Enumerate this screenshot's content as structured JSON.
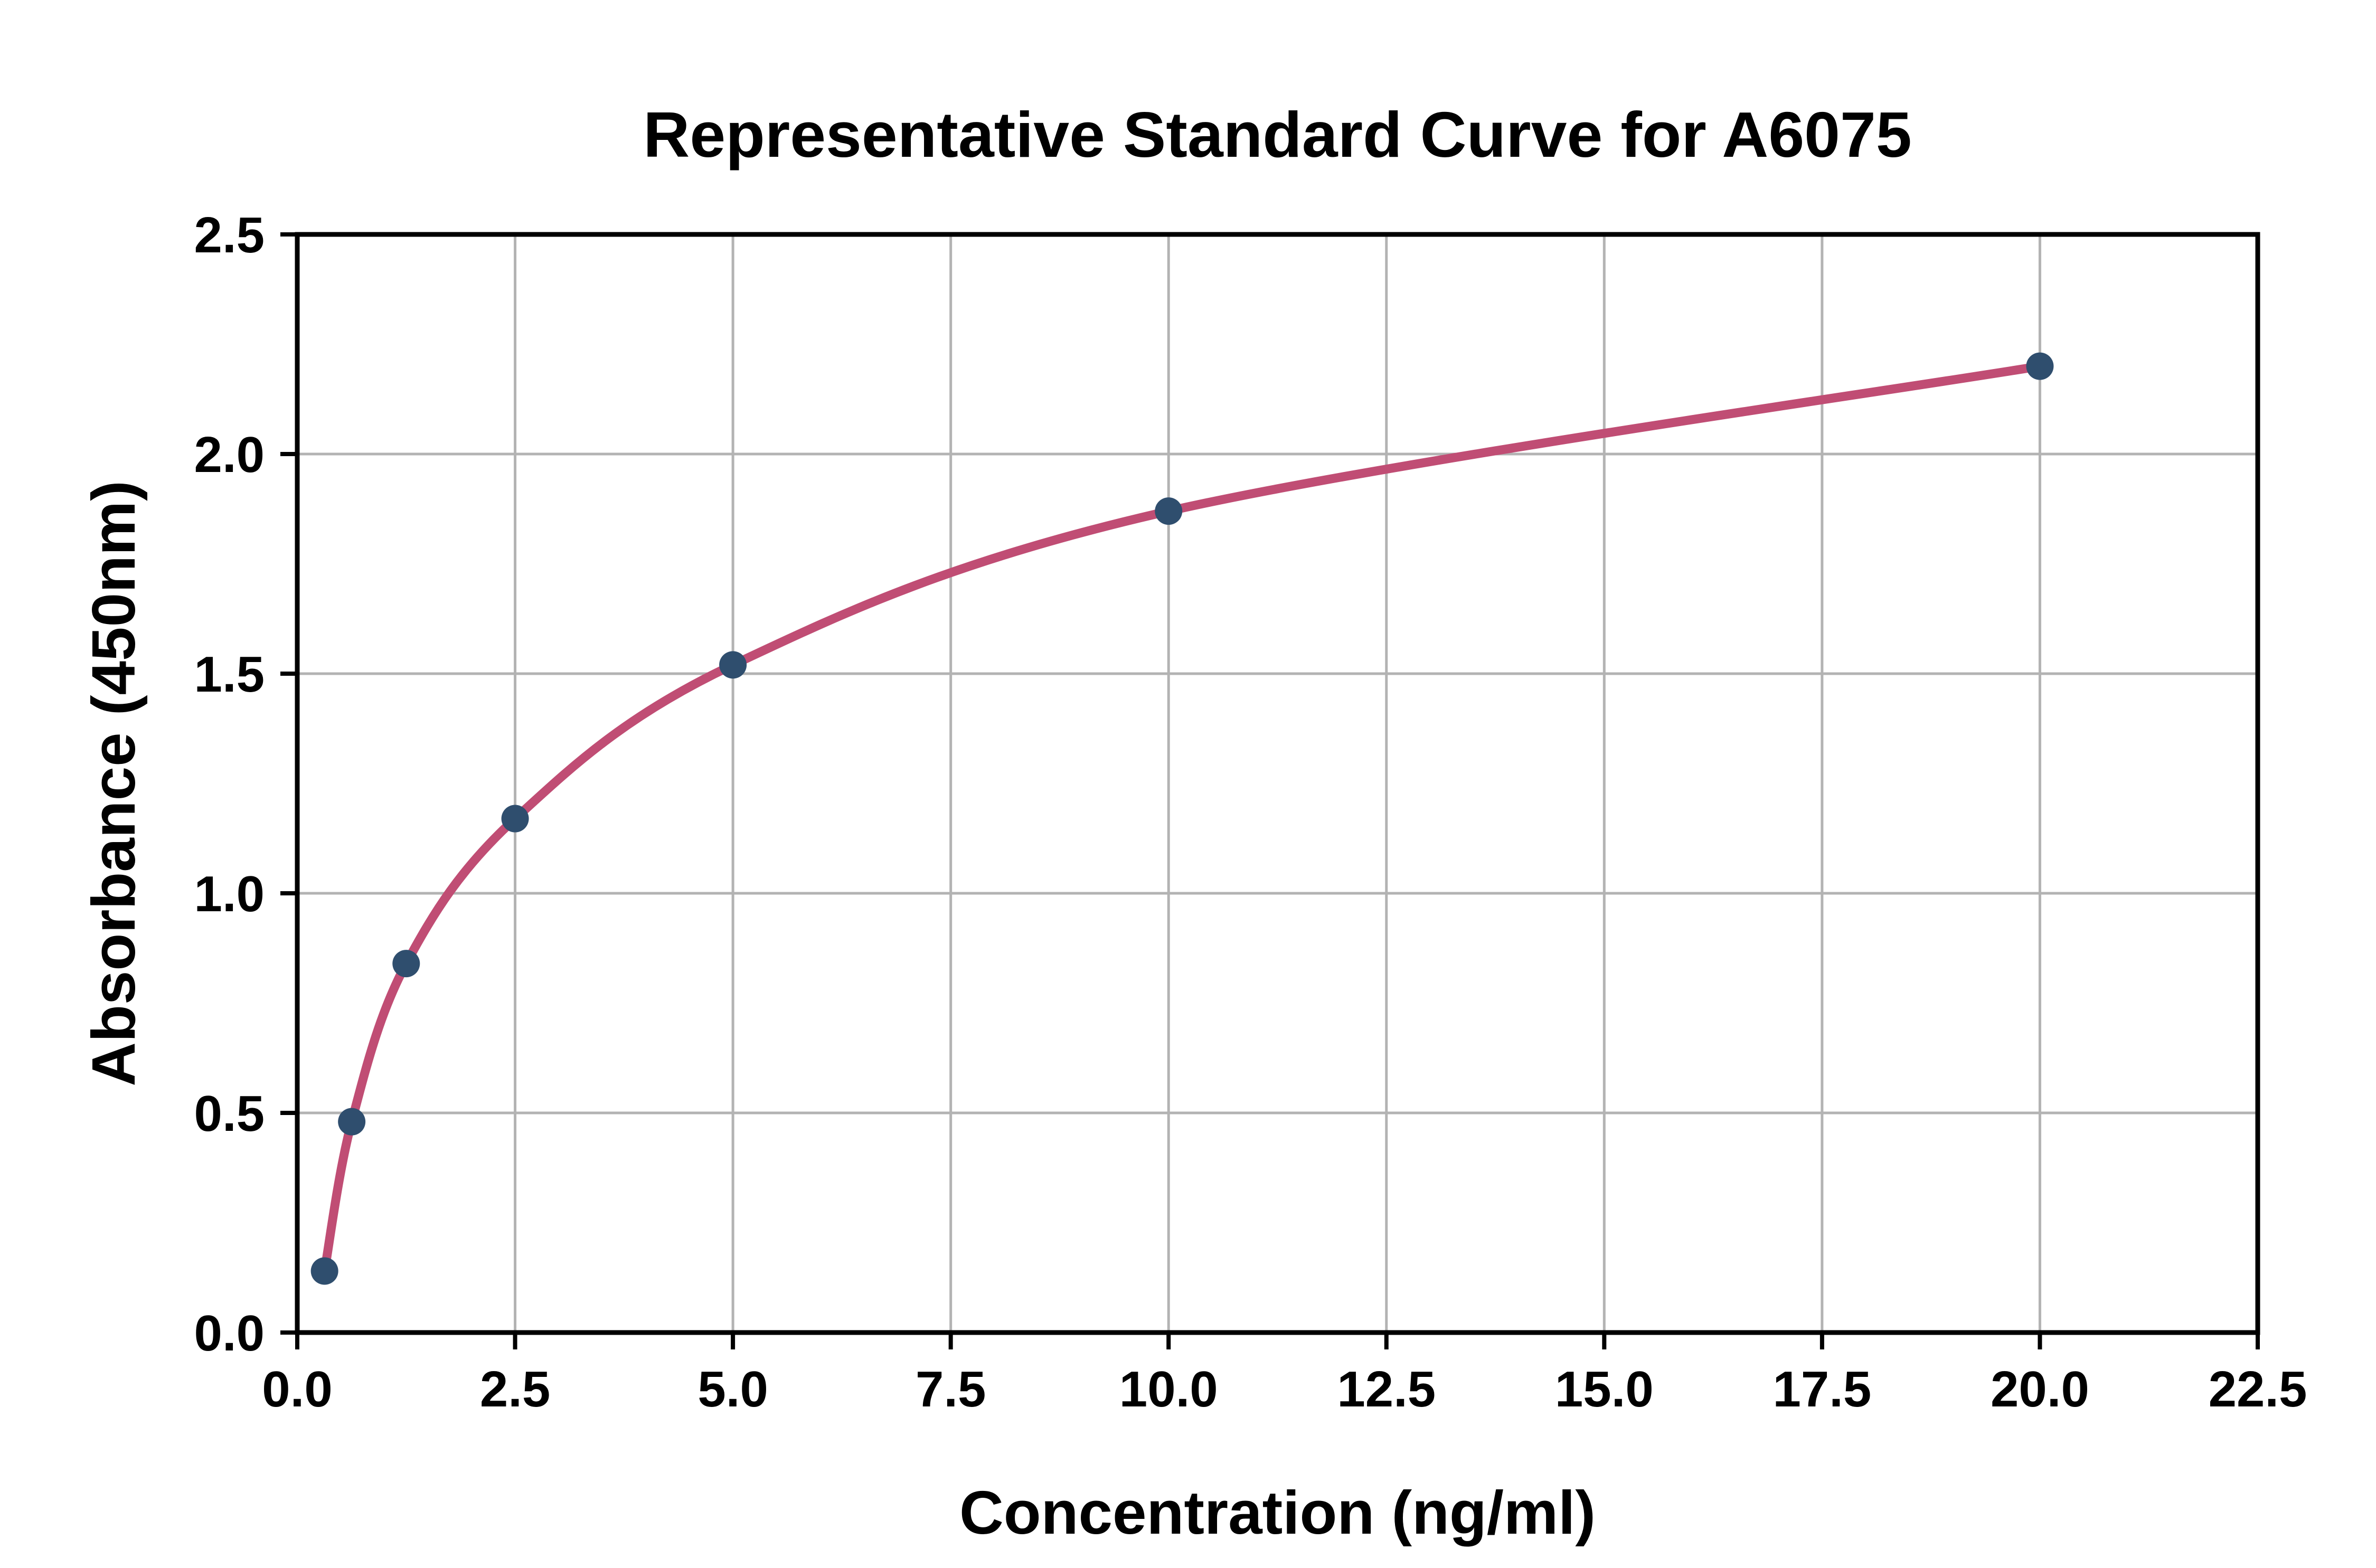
{
  "chart_data": {
    "type": "line",
    "title": "Representative Standard Curve for A6075",
    "xlabel": "Concentration (ng/ml)",
    "ylabel": "Absorbance (450nm)",
    "series": [
      {
        "name": "standards",
        "x": [
          0.313,
          0.625,
          1.25,
          2.5,
          5,
          10,
          20
        ],
        "y": [
          0.14,
          0.48,
          0.84,
          1.17,
          1.52,
          1.87,
          2.2
        ]
      }
    ],
    "xlim": [
      0,
      22.5
    ],
    "ylim": [
      0,
      2.5
    ],
    "x_tick_values": [
      0,
      2.5,
      5,
      7.5,
      10,
      12.5,
      15,
      17.5,
      20,
      22.5
    ],
    "x_tick_labels": [
      "0.0",
      "2.5",
      "5.0",
      "7.5",
      "10.0",
      "12.5",
      "15.0",
      "17.5",
      "20.0",
      "22.5"
    ],
    "y_tick_values": [
      0,
      0.5,
      1,
      1.5,
      2,
      2.5
    ],
    "y_tick_labels": [
      "0.0",
      "0.5",
      "1.0",
      "1.5",
      "2.0",
      "2.5"
    ],
    "grid": true,
    "legend": "none",
    "colors": {
      "curve": "#c04d74",
      "points": "#2f4e6e",
      "grid": "#b3b3b3",
      "spine": "#000000",
      "text": "#000000",
      "background": "#ffffff"
    }
  }
}
